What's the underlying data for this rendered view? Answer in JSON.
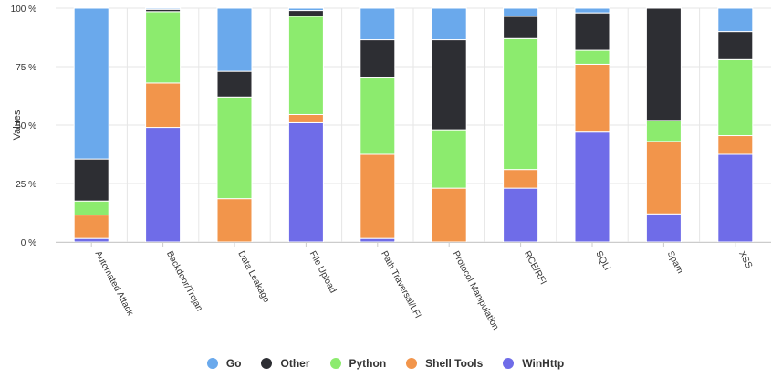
{
  "chart_data": {
    "type": "bar",
    "stacked": true,
    "percent": true,
    "title": "",
    "xlabel": "",
    "ylabel": "Values",
    "ylim": [
      0,
      100
    ],
    "yticks": [
      "0 %",
      "25 %",
      "50 %",
      "75 %",
      "100 %"
    ],
    "categories": [
      "Automated Attack",
      "Backdoor/Trojan",
      "Data Leakage",
      "File Upload",
      "Path Traversal/LFI",
      "Protocol Manipulation",
      "RCE/RFI",
      "SQLi",
      "Spam",
      "XSS"
    ],
    "series": [
      {
        "name": "WinHttp",
        "color": "#6f6ce8",
        "values": [
          1.5,
          49,
          0,
          51,
          1.5,
          0,
          23,
          47,
          12,
          37.5
        ]
      },
      {
        "name": "Shell Tools",
        "color": "#f2954b",
        "values": [
          10,
          19,
          18.5,
          3.5,
          36,
          23,
          8,
          29,
          31,
          8
        ]
      },
      {
        "name": "Python",
        "color": "#8ceb6e",
        "values": [
          6,
          30.5,
          43.5,
          42,
          33,
          25,
          56,
          6,
          9,
          32.5
        ]
      },
      {
        "name": "Other",
        "color": "#2d2e33",
        "values": [
          18,
          1,
          11,
          2.5,
          16,
          38.5,
          9.5,
          16,
          48,
          12
        ]
      },
      {
        "name": "Go",
        "color": "#6aa9ec",
        "values": [
          64.5,
          0.5,
          27,
          1,
          13.5,
          13.5,
          3.5,
          2,
          0,
          10
        ]
      }
    ],
    "legend": {
      "position": "bottom",
      "order": [
        "Go",
        "Other",
        "Python",
        "Shell Tools",
        "WinHttp"
      ]
    }
  }
}
